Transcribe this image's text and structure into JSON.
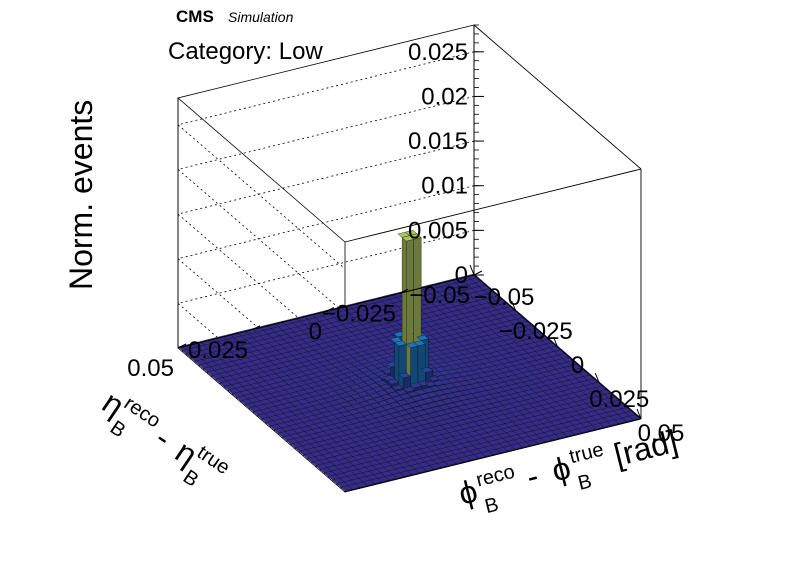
{
  "header": {
    "brand": "CMS",
    "subtitle": "Simulation",
    "category": "Category: Low"
  },
  "chart_data": {
    "type": "lego3d",
    "zlabel": "Norm. events",
    "xlabel": {
      "main": "ϕ",
      "sup1": "reco",
      "sub1": "B",
      "minus": "-",
      "main2": "ϕ",
      "sup2": "true",
      "sub2": "B",
      "unit": "[rad]"
    },
    "ylabel": {
      "main": "η",
      "sup1": "reco",
      "sub1": "B",
      "minus": "-",
      "main2": "η",
      "sup2": "true",
      "sub2": "B"
    },
    "xlim": [
      -0.05,
      0.05
    ],
    "ylim": [
      -0.05,
      0.05
    ],
    "zlim": [
      0,
      0.028
    ],
    "x_ticks": [
      "−0.05",
      "−0.025",
      "0",
      "0.025",
      "0.05"
    ],
    "x_tick_values": [
      -0.05,
      -0.025,
      0,
      0.025,
      0.05
    ],
    "y_ticks": [
      "−0.05",
      "−0.025",
      "0",
      "0.025",
      "0.05"
    ],
    "y_tick_values": [
      -0.05,
      -0.025,
      0,
      0.025,
      0.05
    ],
    "z_ticks": [
      "0",
      "0.005",
      "0.01",
      "0.015",
      "0.02",
      "0.025"
    ],
    "z_tick_values": [
      0,
      0.005,
      0.01,
      0.015,
      0.02,
      0.025
    ],
    "bins": 40,
    "peak": 0.0225,
    "core_sigma": 0.0022,
    "tail_sigma": 0.012,
    "tail_fraction": 0.025,
    "colormap": [
      "#352a87",
      "#1a5fb4",
      "#1f9bd1",
      "#3fbca0",
      "#8fc46b",
      "#d6c44a",
      "#f9fb0e"
    ],
    "grid": true
  }
}
